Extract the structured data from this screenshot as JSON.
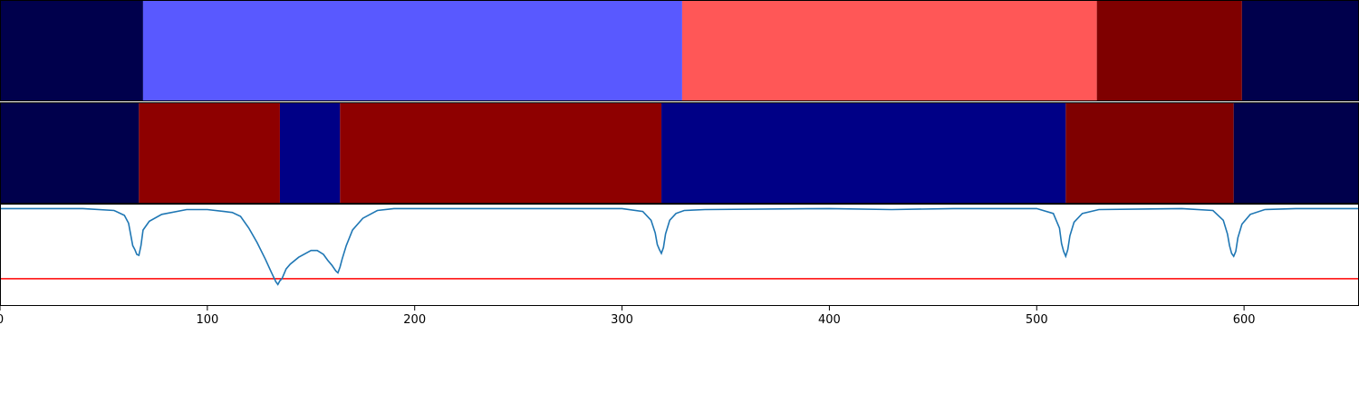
{
  "chart_data": [
    {
      "type": "heatmap",
      "panel": "top-band",
      "segments": [
        {
          "start": 0,
          "end": 69,
          "color": "#00004c"
        },
        {
          "start": 69,
          "end": 329,
          "color": "#5959ff"
        },
        {
          "start": 329,
          "end": 529,
          "color": "#ff5757"
        },
        {
          "start": 529,
          "end": 599,
          "color": "#7f0000"
        },
        {
          "start": 599,
          "end": 655,
          "color": "#00004c"
        }
      ]
    },
    {
      "type": "heatmap",
      "panel": "middle-band",
      "segments": [
        {
          "start": 0,
          "end": 67,
          "color": "#00004c"
        },
        {
          "start": 67,
          "end": 135,
          "color": "#8e0000"
        },
        {
          "start": 135,
          "end": 164,
          "color": "#000086"
        },
        {
          "start": 164,
          "end": 319,
          "color": "#8e0000"
        },
        {
          "start": 319,
          "end": 514,
          "color": "#000086"
        },
        {
          "start": 514,
          "end": 595,
          "color": "#7f0000"
        },
        {
          "start": 595,
          "end": 655,
          "color": "#00004c"
        }
      ]
    },
    {
      "type": "line",
      "panel": "bottom-plot",
      "xlim": [
        0,
        655
      ],
      "ylim": [
        -1.0,
        0.05
      ],
      "xticks": [
        "0",
        "100",
        "200",
        "300",
        "400",
        "500",
        "600"
      ],
      "xtick_values": [
        0,
        100,
        200,
        300,
        400,
        500,
        600
      ],
      "threshold": -0.72,
      "threshold_color": "#ff0000",
      "series_color": "#1f77b4",
      "x": [
        0,
        40,
        55,
        60,
        62,
        64,
        65,
        66,
        67,
        68,
        69,
        72,
        78,
        90,
        100,
        108,
        112,
        116,
        120,
        124,
        128,
        131,
        133,
        134,
        135,
        136,
        138,
        140,
        144,
        150,
        153,
        156,
        158,
        160,
        162,
        163,
        164,
        165,
        167,
        170,
        175,
        182,
        190,
        200,
        300,
        310,
        314,
        316,
        317,
        318,
        319,
        320,
        321,
        323,
        326,
        330,
        340,
        400,
        430,
        460,
        500,
        508,
        511,
        512,
        513,
        514,
        515,
        516,
        518,
        522,
        530,
        570,
        585,
        590,
        592,
        593,
        594,
        595,
        596,
        597,
        599,
        603,
        610,
        625,
        650,
        655
      ],
      "y": [
        0,
        0,
        -0.02,
        -0.07,
        -0.15,
        -0.38,
        -0.42,
        -0.47,
        -0.48,
        -0.38,
        -0.22,
        -0.13,
        -0.06,
        -0.01,
        -0.01,
        -0.03,
        -0.04,
        -0.08,
        -0.2,
        -0.35,
        -0.52,
        -0.66,
        -0.75,
        -0.78,
        -0.74,
        -0.72,
        -0.62,
        -0.57,
        -0.5,
        -0.43,
        -0.43,
        -0.47,
        -0.53,
        -0.58,
        -0.64,
        -0.66,
        -0.6,
        -0.52,
        -0.38,
        -0.22,
        -0.1,
        -0.02,
        0,
        0,
        0,
        -0.03,
        -0.12,
        -0.25,
        -0.37,
        -0.42,
        -0.46,
        -0.4,
        -0.26,
        -0.12,
        -0.05,
        -0.02,
        -0.01,
        0,
        -0.01,
        0,
        0,
        -0.05,
        -0.2,
        -0.36,
        -0.44,
        -0.49,
        -0.42,
        -0.28,
        -0.14,
        -0.05,
        -0.01,
        0,
        -0.02,
        -0.12,
        -0.26,
        -0.38,
        -0.46,
        -0.49,
        -0.44,
        -0.3,
        -0.16,
        -0.06,
        -0.01,
        0,
        0,
        0
      ]
    }
  ]
}
